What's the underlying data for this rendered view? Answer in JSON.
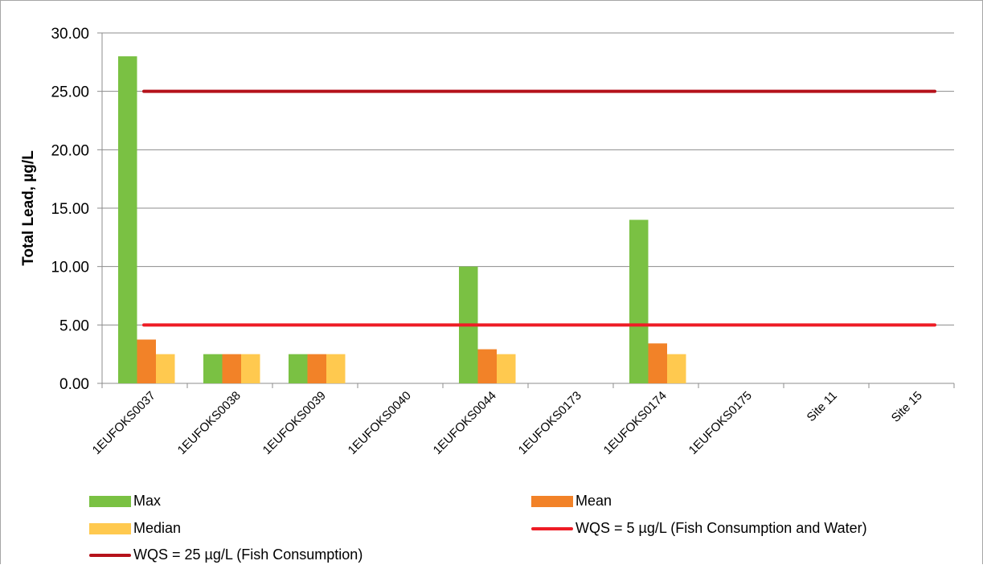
{
  "chart_data": {
    "type": "bar",
    "title": "",
    "xlabel": "",
    "ylabel": "Total Lead, µg/L",
    "ylim": [
      0,
      30
    ],
    "yticks": [
      "0.00",
      "5.00",
      "10.00",
      "15.00",
      "20.00",
      "25.00",
      "30.00"
    ],
    "grid": true,
    "legend_position": "bottom",
    "categories": [
      "1EUFOKS0037",
      "1EUFOKS0038",
      "1EUFOKS0039",
      "1EUFOKS0040",
      "1EUFOKS0044",
      "1EUFOKS0173",
      "1EUFOKS0174",
      "1EUFOKS0175",
      "Site 11",
      "Site 15"
    ],
    "series": [
      {
        "name": "Max",
        "color": "#7ac143",
        "values": [
          28,
          2.5,
          2.5,
          null,
          10,
          null,
          14,
          null,
          null,
          null
        ]
      },
      {
        "name": "Mean",
        "color": "#f28228",
        "values": [
          3.75,
          2.5,
          2.5,
          null,
          2.92,
          null,
          3.42,
          null,
          null,
          null
        ]
      },
      {
        "name": "Median",
        "color": "#ffc94f",
        "values": [
          2.5,
          2.5,
          2.5,
          null,
          2.5,
          null,
          2.5,
          null,
          null,
          null
        ]
      }
    ],
    "reference_lines": [
      {
        "name": "WQS = 5 µg/L (Fish Consumption and Water)",
        "value": 5,
        "color": "#ee1c25"
      },
      {
        "name": "WQS = 25 µg/L (Fish Consumption)",
        "value": 25,
        "color": "#b5121b"
      }
    ]
  }
}
